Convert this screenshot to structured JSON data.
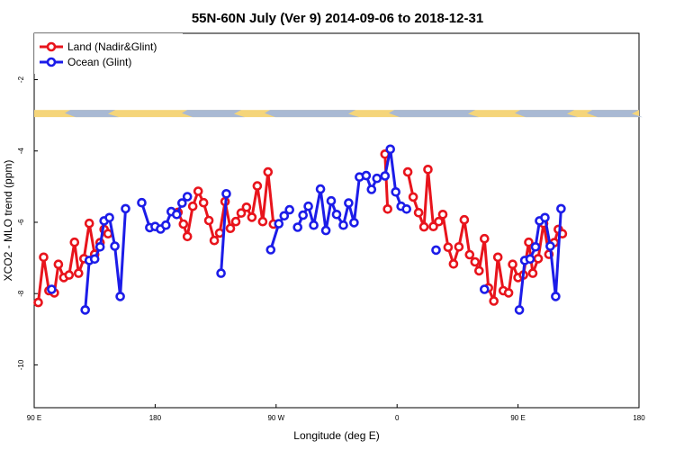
{
  "chart_data": {
    "type": "line",
    "title": "55N-60N July (Ver 9)   2014-09-06 to 2018-12-31",
    "xlabel": "Longitude (deg E)",
    "ylabel": "XCO2 - MLO trend (ppm)",
    "xlim": [
      90,
      540
    ],
    "ylim": [
      -11.2,
      -0.7
    ],
    "x_ticks": [
      {
        "value": 90,
        "label": "90 E"
      },
      {
        "value": 180,
        "label": "180"
      },
      {
        "value": 270,
        "label": "90 W"
      },
      {
        "value": 360,
        "label": "0"
      },
      {
        "value": 450,
        "label": "90 E"
      },
      {
        "value": 540,
        "label": "180"
      }
    ],
    "y_ticks": [
      {
        "value": -2,
        "label": "-2"
      },
      {
        "value": -4,
        "label": "-4"
      },
      {
        "value": -6,
        "label": "-6"
      },
      {
        "value": -8,
        "label": "-8"
      },
      {
        "value": -10,
        "label": "-10"
      }
    ],
    "grid": false,
    "legend": "top-left",
    "map_strip": {
      "y_range": [
        -2.85,
        -3.05
      ],
      "land_color": "#F5D57A",
      "ocean_color": "#A9B9D3"
    },
    "series": [
      {
        "name": "Land (Nadir&Glint)",
        "color": "#E8141C",
        "segments": [
          [
            [
              93,
              -8.25
            ],
            [
              97,
              -6.98
            ],
            [
              101,
              -7.92
            ],
            [
              105,
              -7.98
            ],
            [
              108,
              -7.18
            ],
            [
              112,
              -7.55
            ],
            [
              116,
              -7.48
            ],
            [
              120,
              -6.56
            ],
            [
              123,
              -7.43
            ],
            [
              127,
              -7.02
            ],
            [
              131,
              -6.03
            ],
            [
              135,
              -6.9
            ],
            [
              139,
              -6.57
            ],
            [
              142,
              -6.2
            ],
            [
              145,
              -6.32
            ]
          ],
          [
            [
              197,
              -5.72
            ],
            [
              201,
              -6.05
            ],
            [
              204,
              -6.4
            ],
            [
              208,
              -5.55
            ],
            [
              212,
              -5.13
            ],
            [
              216,
              -5.45
            ],
            [
              220,
              -5.95
            ],
            [
              224,
              -6.51
            ],
            [
              228,
              -6.3
            ],
            [
              232,
              -5.42
            ],
            [
              236,
              -6.17
            ],
            [
              240,
              -5.98
            ],
            [
              244,
              -5.74
            ],
            [
              248,
              -5.58
            ],
            [
              252,
              -5.86
            ],
            [
              256,
              -4.98
            ],
            [
              260,
              -5.98
            ],
            [
              264,
              -4.59
            ],
            [
              268,
              -6.05
            ]
          ],
          [
            [
              351,
              -4.09
            ],
            [
              353,
              -5.63
            ]
          ],
          [
            [
              368,
              -4.59
            ],
            [
              372,
              -5.29
            ],
            [
              376,
              -5.73
            ],
            [
              380,
              -6.13
            ],
            [
              383,
              -4.52
            ],
            [
              387,
              -6.12
            ],
            [
              391,
              -5.98
            ],
            [
              394,
              -5.78
            ],
            [
              398,
              -6.7
            ],
            [
              402,
              -7.17
            ],
            [
              406,
              -6.69
            ],
            [
              410,
              -5.93
            ],
            [
              414,
              -6.91
            ],
            [
              418,
              -7.11
            ],
            [
              421,
              -7.36
            ],
            [
              425,
              -6.46
            ],
            [
              428,
              -7.84
            ],
            [
              432,
              -8.21
            ],
            [
              435,
              -6.98
            ],
            [
              439,
              -7.92
            ],
            [
              443,
              -7.98
            ],
            [
              446,
              -7.18
            ],
            [
              450,
              -7.55
            ],
            [
              454,
              -7.48
            ],
            [
              458,
              -6.56
            ],
            [
              461,
              -7.43
            ],
            [
              465,
              -7.02
            ],
            [
              469,
              -6.03
            ],
            [
              473,
              -6.9
            ],
            [
              477,
              -6.57
            ],
            [
              480,
              -6.2
            ],
            [
              483,
              -6.32
            ]
          ]
        ]
      },
      {
        "name": "Ocean (Glint)",
        "color": "#1C1CE8",
        "segments": [
          [
            [
              103,
              -7.88
            ]
          ],
          [
            [
              128,
              -8.46
            ],
            [
              131,
              -7.07
            ],
            [
              135,
              -7.03
            ],
            [
              139,
              -6.69
            ],
            [
              142,
              -5.96
            ],
            [
              146,
              -5.87
            ],
            [
              150,
              -6.67
            ],
            [
              154,
              -8.08
            ],
            [
              158,
              -5.62
            ]
          ],
          [
            [
              170,
              -5.45
            ],
            [
              176,
              -6.15
            ],
            [
              180,
              -6.12
            ],
            [
              184,
              -6.19
            ],
            [
              188,
              -6.08
            ],
            [
              192,
              -5.7
            ],
            [
              196,
              -5.78
            ],
            [
              200,
              -5.46
            ],
            [
              204,
              -5.28
            ]
          ],
          [
            [
              229,
              -7.43
            ],
            [
              233,
              -5.2
            ]
          ],
          [
            [
              266,
              -6.77
            ],
            [
              272,
              -6.04
            ],
            [
              276,
              -5.82
            ],
            [
              280,
              -5.65
            ]
          ],
          [
            [
              286,
              -6.14
            ],
            [
              290,
              -5.8
            ],
            [
              294,
              -5.55
            ],
            [
              298,
              -6.08
            ],
            [
              303,
              -5.07
            ],
            [
              307,
              -6.23
            ],
            [
              311,
              -5.4
            ],
            [
              315,
              -5.78
            ],
            [
              320,
              -6.08
            ],
            [
              324,
              -5.46
            ],
            [
              328,
              -6.01
            ],
            [
              332,
              -4.73
            ],
            [
              337,
              -4.69
            ],
            [
              341,
              -5.08
            ],
            [
              345,
              -4.77
            ],
            [
              351,
              -4.7
            ],
            [
              355,
              -3.95
            ],
            [
              359,
              -5.15
            ],
            [
              363,
              -5.55
            ],
            [
              367,
              -5.63
            ]
          ],
          [
            [
              389,
              -6.78
            ]
          ],
          [
            [
              425,
              -7.88
            ]
          ],
          [
            [
              451,
              -8.46
            ],
            [
              455,
              -7.07
            ],
            [
              459,
              -7.03
            ],
            [
              463,
              -6.69
            ],
            [
              466,
              -5.96
            ],
            [
              470,
              -5.87
            ],
            [
              474,
              -6.67
            ],
            [
              478,
              -8.08
            ],
            [
              482,
              -5.62
            ]
          ]
        ]
      }
    ]
  }
}
